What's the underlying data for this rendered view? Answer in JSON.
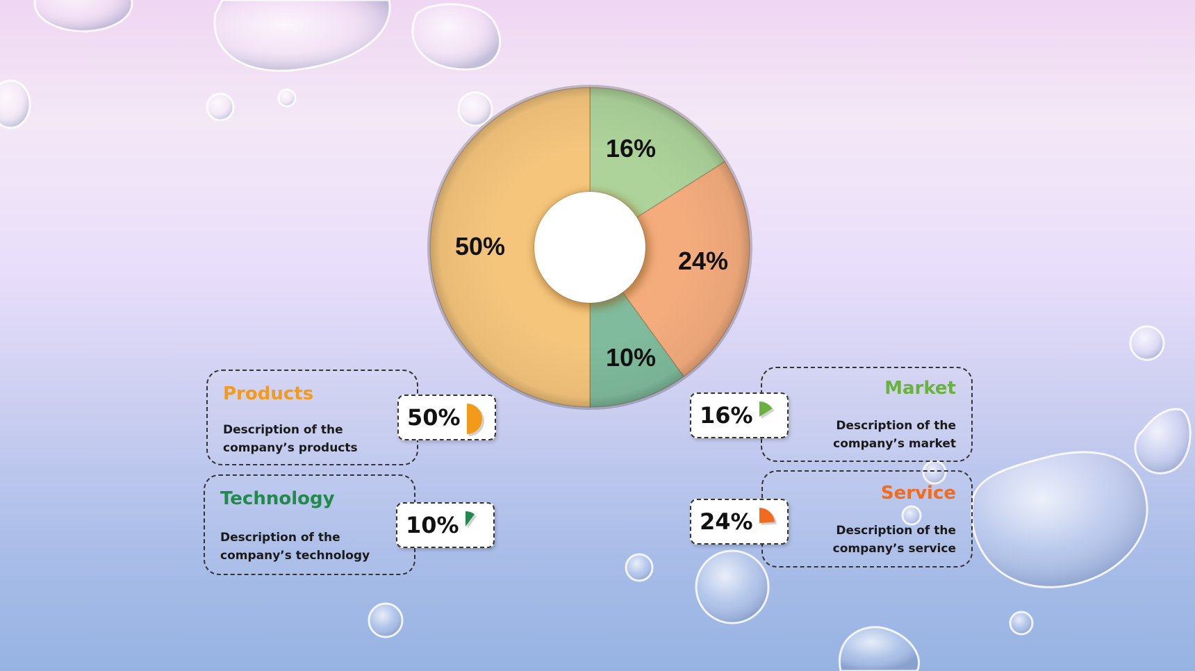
{
  "chart_data": {
    "type": "pie",
    "variant": "donut",
    "start": "top",
    "direction": "clockwise",
    "slices": [
      {
        "label": "Market",
        "value": 16,
        "display": "16%",
        "color": "#add39a"
      },
      {
        "label": "Service",
        "value": 24,
        "display": "24%",
        "color": "#f4ac7d"
      },
      {
        "label": "Technology",
        "value": 10,
        "display": "10%",
        "color": "#7fbb9c"
      },
      {
        "label": "Products",
        "value": 50,
        "display": "50%",
        "color": "#f5c57c"
      }
    ]
  },
  "cards": {
    "products": {
      "title": "Products",
      "desc_line1": "Description of the",
      "desc_line2": "company’s products",
      "pct": "50%",
      "color": "#f39a1a",
      "value": 50
    },
    "technology": {
      "title": "Technology",
      "desc_line1": "Description of the",
      "desc_line2": "company’s technology",
      "pct": "10%",
      "color": "#1f8a4c",
      "value": 10
    },
    "market": {
      "title": "Market",
      "desc_line1": "Description of the",
      "desc_line2": "company’s market",
      "pct": "16%",
      "color": "#6ab23f",
      "value": 16
    },
    "service": {
      "title": "Service",
      "desc_line1": "Description of the",
      "desc_line2": "company’s service",
      "pct": "24%",
      "color": "#f26a1b",
      "value": 24
    }
  }
}
